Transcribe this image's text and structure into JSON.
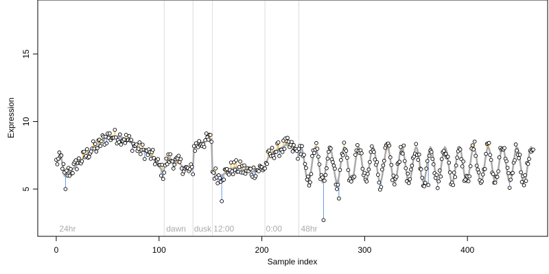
{
  "chart_data": {
    "type": "scatter",
    "title": "",
    "xlabel": "Sample index",
    "ylabel": "Expression",
    "xlim": [
      -18,
      478
    ],
    "ylim": [
      1.5,
      19
    ],
    "x_ticks": [
      0,
      100,
      200,
      300,
      400
    ],
    "y_ticks": [
      5,
      10,
      15
    ],
    "section_labels": [
      {
        "x": 3,
        "label": "24hr"
      },
      {
        "x": 107,
        "label": "dawn"
      },
      {
        "x": 134,
        "label": "dusk"
      },
      {
        "x": 153,
        "label": "12:00"
      },
      {
        "x": 204,
        "label": "0:00"
      },
      {
        "x": 238,
        "label": "48hr"
      }
    ],
    "section_lines": [
      105,
      133,
      152,
      203,
      236
    ],
    "anchors": [
      [
        0,
        7.0
      ],
      [
        2,
        7.1
      ],
      [
        5,
        7.3
      ],
      [
        8,
        6.0
      ],
      [
        10,
        6.1
      ],
      [
        14,
        6.4
      ],
      [
        18,
        6.6
      ],
      [
        20,
        6.9
      ],
      [
        25,
        7.2
      ],
      [
        30,
        7.6
      ],
      [
        35,
        8.0
      ],
      [
        40,
        8.1
      ],
      [
        45,
        8.6
      ],
      [
        50,
        8.9
      ],
      [
        55,
        8.9
      ],
      [
        60,
        8.9
      ],
      [
        65,
        8.8
      ],
      [
        70,
        8.6
      ],
      [
        75,
        8.3
      ],
      [
        80,
        8.0
      ],
      [
        85,
        7.8
      ],
      [
        90,
        7.6
      ],
      [
        95,
        7.3
      ],
      [
        100,
        6.7
      ],
      [
        104,
        6.2
      ],
      [
        106,
        6.8
      ],
      [
        110,
        7.3
      ],
      [
        115,
        7.0
      ],
      [
        120,
        6.9
      ],
      [
        125,
        6.5
      ],
      [
        130,
        6.3
      ],
      [
        133,
        6.5
      ],
      [
        134,
        8.1
      ],
      [
        140,
        8.4
      ],
      [
        146,
        8.6
      ],
      [
        151,
        8.7
      ],
      [
        152,
        6.3
      ],
      [
        158,
        5.9
      ],
      [
        165,
        6.2
      ],
      [
        170,
        6.5
      ],
      [
        175,
        6.6
      ],
      [
        180,
        6.5
      ],
      [
        186,
        6.3
      ],
      [
        192,
        6.3
      ],
      [
        198,
        6.5
      ],
      [
        203,
        6.6
      ],
      [
        206,
        7.3
      ],
      [
        212,
        7.8
      ],
      [
        218,
        8.0
      ],
      [
        224,
        8.3
      ],
      [
        230,
        8.0
      ],
      [
        235,
        7.7
      ],
      [
        236,
        6.2
      ]
    ],
    "oscillation": {
      "x_start": 236,
      "x_end": 464,
      "period": 14,
      "mean": 6.8,
      "amplitude": 1.3
    },
    "markers": [
      {
        "name": "Expression measurement",
        "color": "#000000",
        "fill": "#ffffff"
      },
      {
        "name": "Positive residual",
        "color": "#ffa500"
      },
      {
        "name": "Negative residual",
        "color": "#6495ed"
      },
      {
        "name": "Fitted trend",
        "color": "#a9a9a9"
      }
    ],
    "outliers": [
      [
        260,
        2.7
      ],
      [
        9,
        5.0
      ],
      [
        161,
        4.1
      ],
      [
        275,
        4.3
      ],
      [
        362,
        5.3
      ]
    ],
    "n_points": 465,
    "point_noise": 0.55,
    "grid": false
  }
}
